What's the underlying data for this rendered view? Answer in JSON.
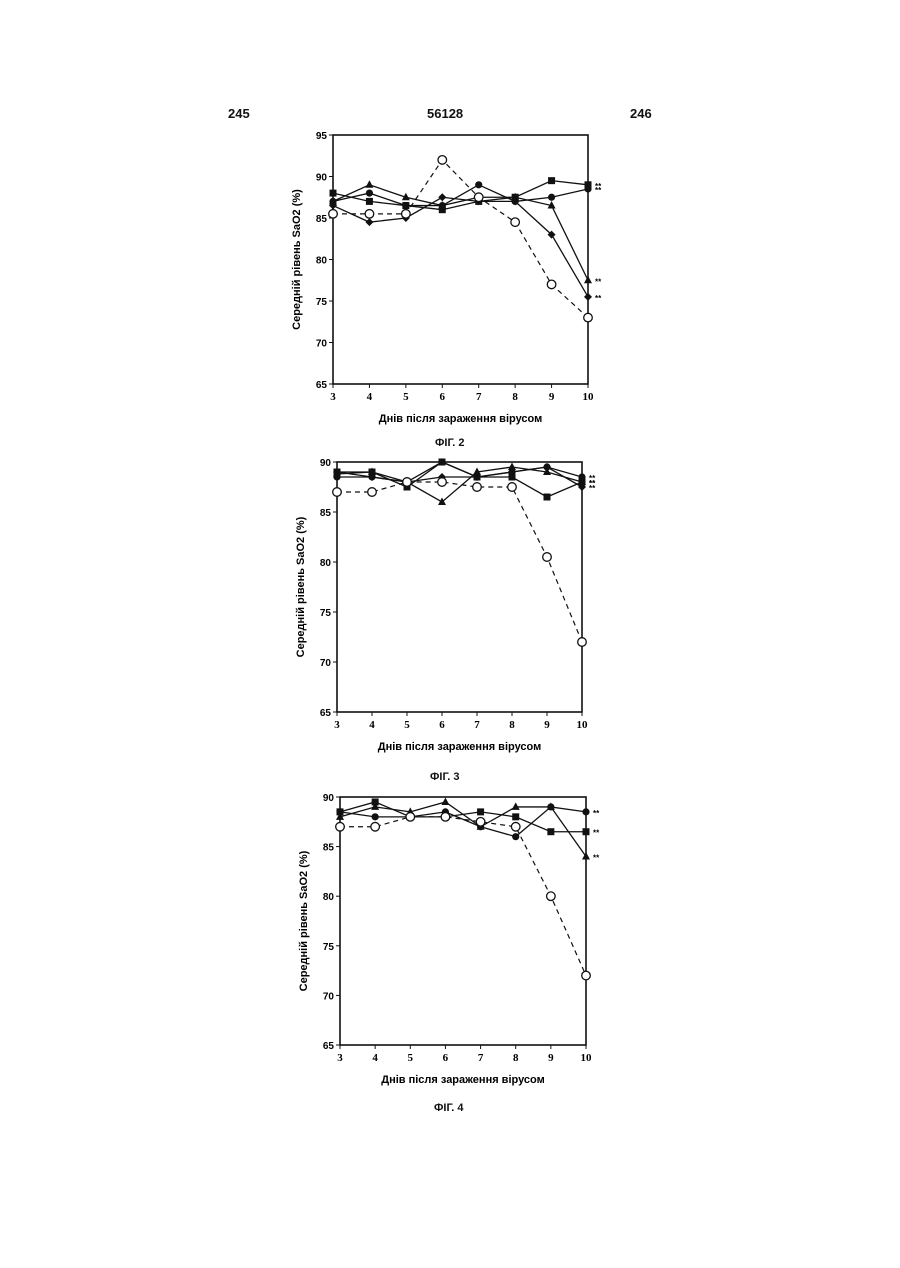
{
  "header": {
    "left_page": "245",
    "doc_number": "56128",
    "right_page": "246"
  },
  "figures": [
    {
      "caption": "ФІГ. 2"
    },
    {
      "caption": "ФІГ. 3"
    },
    {
      "caption": "ФІГ. 4"
    }
  ],
  "chart_data": [
    {
      "type": "line",
      "xlabel": "Днів після зараження вірусом",
      "ylabel": "Середній рівень SaO2 (%)",
      "x": [
        3,
        4,
        5,
        6,
        7,
        8,
        9,
        10
      ],
      "xlim": [
        3,
        10
      ],
      "ylim": [
        65,
        95
      ],
      "yticks": [
        65,
        70,
        75,
        80,
        85,
        90,
        95
      ],
      "series": [
        {
          "marker": "square",
          "style": "solid",
          "values": [
            88,
            87,
            86.5,
            86,
            87,
            87.5,
            89.5,
            89
          ],
          "annotation": "**"
        },
        {
          "marker": "circle-filled",
          "style": "solid",
          "values": [
            87,
            88,
            86.5,
            86.5,
            89,
            87,
            87.5,
            88.5
          ],
          "annotation": "**"
        },
        {
          "marker": "triangle",
          "style": "solid",
          "values": [
            87,
            89,
            87.5,
            86.5,
            87.5,
            87.5,
            86.5,
            77.5
          ],
          "annotation": "**"
        },
        {
          "marker": "diamond",
          "style": "solid",
          "values": [
            86.5,
            84.5,
            85,
            87.5,
            87,
            87,
            83,
            75.5
          ],
          "annotation": "**"
        },
        {
          "marker": "circle-open",
          "style": "dashed",
          "values": [
            85.5,
            85.5,
            85.5,
            92,
            87.5,
            84.5,
            77,
            73
          ]
        }
      ]
    },
    {
      "type": "line",
      "xlabel": "Днів після зараження вірусом",
      "ylabel": "Середній рівень SaO2 (%)",
      "x": [
        3,
        4,
        5,
        6,
        7,
        8,
        9,
        10
      ],
      "xlim": [
        3,
        10
      ],
      "ylim": [
        65,
        90
      ],
      "yticks": [
        65,
        70,
        75,
        80,
        85,
        90
      ],
      "series": [
        {
          "marker": "square",
          "style": "solid",
          "values": [
            89,
            89,
            87.5,
            90,
            88.5,
            88.5,
            86.5,
            88
          ],
          "annotation": "**"
        },
        {
          "marker": "circle-filled",
          "style": "solid",
          "values": [
            88.5,
            88.5,
            88,
            90,
            88.5,
            89,
            89.5,
            88.5
          ],
          "annotation": "**"
        },
        {
          "marker": "triangle",
          "style": "solid",
          "values": [
            88.8,
            89,
            88,
            86,
            89,
            89.5,
            89,
            88
          ],
          "annotation": "**"
        },
        {
          "marker": "diamond",
          "style": "solid",
          "values": [
            89,
            88.5,
            88,
            88.5,
            88.5,
            89,
            89.5,
            87.5
          ],
          "annotation": "**"
        },
        {
          "marker": "circle-open",
          "style": "dashed",
          "values": [
            87,
            87,
            88,
            88,
            87.5,
            87.5,
            80.5,
            72
          ]
        }
      ]
    },
    {
      "type": "line",
      "xlabel": "Днів після зараження вірусом",
      "ylabel": "Середній рівень SaO2 (%)",
      "x": [
        3,
        4,
        5,
        6,
        7,
        8,
        9,
        10
      ],
      "xlim": [
        3,
        10
      ],
      "ylim": [
        65,
        90
      ],
      "yticks": [
        65,
        70,
        75,
        80,
        85,
        90
      ],
      "series": [
        {
          "marker": "square",
          "style": "solid",
          "values": [
            88.5,
            89.5,
            88,
            88,
            88.5,
            88,
            86.5,
            86.5
          ],
          "annotation": "**"
        },
        {
          "marker": "circle-filled",
          "style": "solid",
          "values": [
            88.5,
            88,
            88,
            88.5,
            87,
            86,
            89,
            88.5
          ],
          "annotation": "**"
        },
        {
          "marker": "triangle",
          "style": "solid",
          "values": [
            88,
            89,
            88.5,
            89.5,
            87,
            89,
            89,
            84
          ],
          "annotation": "**"
        },
        {
          "marker": "circle-open",
          "style": "dashed",
          "values": [
            87,
            87,
            88,
            88,
            87.5,
            87,
            80,
            72
          ]
        }
      ]
    }
  ]
}
